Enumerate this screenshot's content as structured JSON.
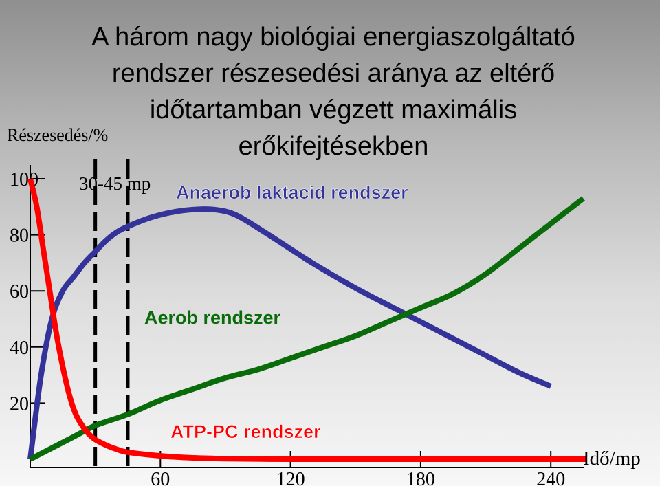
{
  "title_lines": [
    "A három nagy biológiai energiaszolgáltató",
    "rendszer részesedési aránya az eltérő",
    "időtartamban végzett maximális",
    "erőkifejtésekben"
  ],
  "chart_data": {
    "type": "line",
    "title": "A három nagy biológiai energiaszolgáltató rendszer részesedési aránya az eltérő időtartamban végzett maximális erőkifejtésekben",
    "ylabel": "Részesedés/%",
    "xlabel": "Idő/mp",
    "xlim": [
      0,
      260
    ],
    "ylim": [
      0,
      100
    ],
    "xticks": [
      60,
      120,
      180,
      240
    ],
    "yticks": [
      20,
      40,
      60,
      80,
      100
    ],
    "marker_label": "30-45 mp",
    "markers": [
      30,
      45
    ],
    "series": [
      {
        "name": "Anaerob laktacid rendszer",
        "color": "#33339a",
        "x": [
          0,
          5,
          10,
          15,
          20,
          25,
          30,
          35,
          40,
          45,
          55,
          65,
          75,
          85,
          95,
          110,
          130,
          150,
          170,
          190,
          210,
          225,
          240
        ],
        "y": [
          0,
          30,
          50,
          60,
          65,
          70,
          74,
          78,
          81,
          83,
          86,
          88,
          89,
          89,
          87,
          80,
          70,
          61,
          53,
          45,
          37,
          31,
          26
        ]
      },
      {
        "name": "Aerob rendszer",
        "color": "#0a6b0a",
        "x": [
          0,
          20,
          30,
          45,
          60,
          75,
          90,
          105,
          120,
          135,
          150,
          165,
          180,
          195,
          210,
          225,
          240,
          255
        ],
        "y": [
          0,
          8,
          12,
          16,
          21,
          25,
          29,
          32,
          36,
          40,
          44,
          49,
          54,
          59,
          66,
          75,
          84,
          93
        ]
      },
      {
        "name": "ATP-PC rendszer",
        "color": "#ff0000",
        "x": [
          0,
          3,
          6,
          9,
          12,
          15,
          18,
          21,
          24,
          27,
          30,
          35,
          40,
          45,
          60,
          75,
          90,
          120,
          150,
          180,
          210,
          240,
          256
        ],
        "y": [
          100,
          90,
          75,
          60,
          45,
          33,
          23,
          16,
          12,
          9,
          7,
          5,
          3.5,
          2.5,
          1.2,
          0.5,
          0.2,
          0,
          0,
          0,
          0,
          0,
          0
        ]
      }
    ]
  }
}
